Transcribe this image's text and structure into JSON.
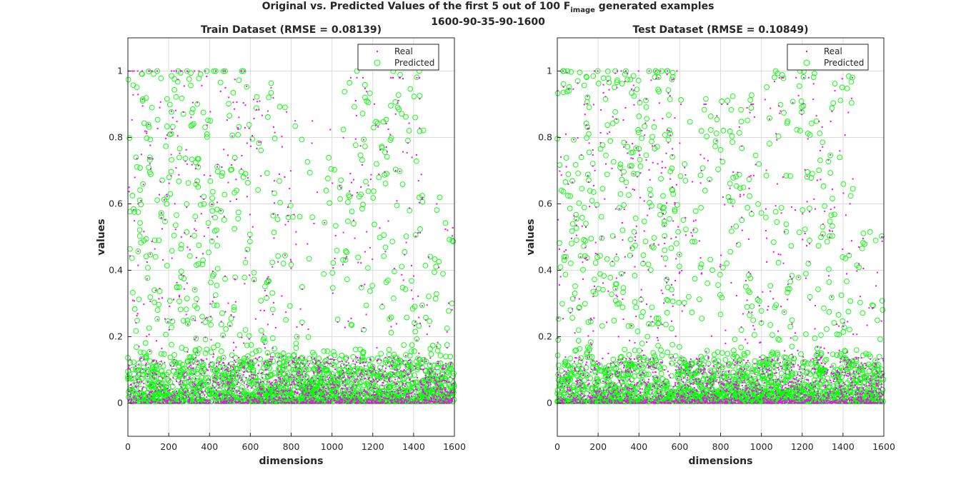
{
  "figure": {
    "suptitle_main": "Original vs. Predicted Values of the first 5 out of 100 F",
    "suptitle_sub": "image",
    "suptitle_tail": " generated examples",
    "suptitle_line2": "1600-90-35-90-1600"
  },
  "colors": {
    "real": "#ff00ff",
    "predicted": "#00ff00",
    "grid": "#dcdcdc",
    "axis": "#262626"
  },
  "chart_data": [
    {
      "type": "scatter",
      "title": "Train Dataset (RMSE = 0.08139)",
      "xlabel": "dimensions",
      "ylabel": "values",
      "xlim": [
        0,
        1600
      ],
      "ylim": [
        -0.1,
        1.1
      ],
      "xticks": [
        0,
        200,
        400,
        600,
        800,
        1000,
        1200,
        1400,
        1600
      ],
      "yticks": [
        0,
        0.2,
        0.4,
        0.6,
        0.8,
        1
      ],
      "grid": true,
      "legend": {
        "position": "top-right",
        "entries": [
          "Real",
          "Predicted"
        ]
      },
      "series": [
        {
          "name": "Real",
          "marker": "dot",
          "description": "5 examples x 1600 dimensions; values 0-1, dense near 0"
        },
        {
          "name": "Predicted",
          "marker": "circle",
          "description": "5 examples x 1600 dimensions; values 0-1, dense near 0"
        }
      ],
      "regions": [
        {
          "x": [
            0,
            600
          ],
          "high_max": 1.0,
          "density": 1.0
        },
        {
          "x": [
            600,
            800
          ],
          "high_max": 0.95,
          "density": 0.6
        },
        {
          "x": [
            800,
            1050
          ],
          "high_max": 0.85,
          "density": 0.25
        },
        {
          "x": [
            1050,
            1450
          ],
          "high_max": 0.98,
          "density": 0.7
        },
        {
          "x": [
            1450,
            1600
          ],
          "high_max": 0.6,
          "density": 0.3
        }
      ]
    },
    {
      "type": "scatter",
      "title": "Test Dataset (RMSE = 0.10849)",
      "xlabel": "dimensions",
      "ylabel": "values",
      "xlim": [
        0,
        1600
      ],
      "ylim": [
        -0.1,
        1.1
      ],
      "xticks": [
        0,
        200,
        400,
        600,
        800,
        1000,
        1200,
        1400,
        1600
      ],
      "yticks": [
        0,
        0.2,
        0.4,
        0.6,
        0.8,
        1
      ],
      "grid": true,
      "legend": {
        "position": "top-right",
        "entries": [
          "Real",
          "Predicted"
        ]
      },
      "series": [
        {
          "name": "Real",
          "marker": "dot",
          "description": "5 examples x 1600 dimensions; values 0-1, dense near 0"
        },
        {
          "name": "Predicted",
          "marker": "circle",
          "description": "5 examples x 1600 dimensions; values 0-1, dense near 0"
        }
      ],
      "regions": [
        {
          "x": [
            0,
            600
          ],
          "high_max": 1.0,
          "density": 1.0
        },
        {
          "x": [
            600,
            1000
          ],
          "high_max": 0.9,
          "density": 0.55
        },
        {
          "x": [
            1000,
            1450
          ],
          "high_max": 0.98,
          "density": 0.65
        },
        {
          "x": [
            1450,
            1600
          ],
          "high_max": 0.5,
          "density": 0.3
        }
      ]
    }
  ]
}
